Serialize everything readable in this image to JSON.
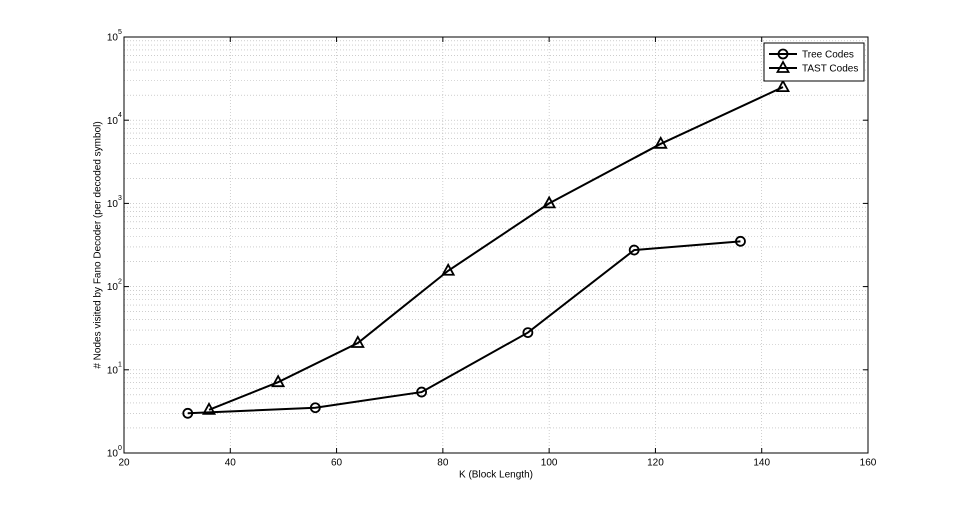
{
  "chart_data": {
    "type": "line",
    "xlabel": "K (Block Length)",
    "ylabel": "# Nodes visited by Fano Decoder (per decoded symbol)",
    "xlim": [
      20,
      160
    ],
    "xticks": [
      20,
      40,
      60,
      80,
      100,
      120,
      140,
      160
    ],
    "ylim": [
      1,
      100000
    ],
    "log_y": true,
    "yticks": [
      {
        "value": 1,
        "label": "10",
        "exponent": "0"
      },
      {
        "value": 10,
        "label": "10",
        "exponent": "1"
      },
      {
        "value": 100,
        "label": "10",
        "exponent": "2"
      },
      {
        "value": 1000,
        "label": "10",
        "exponent": "3"
      },
      {
        "value": 10000,
        "label": "10",
        "exponent": "4"
      },
      {
        "value": 100000,
        "label": "10",
        "exponent": "5"
      }
    ],
    "grid": true,
    "minor_grid": true,
    "legend": "northeast",
    "series": [
      {
        "name": "Tree Codes",
        "color": "#000000",
        "marker": "circle",
        "x": [
          32,
          56,
          76,
          96,
          116,
          136
        ],
        "values": [
          3,
          3.5,
          5.4,
          28,
          275,
          350
        ]
      },
      {
        "name": "TAST Codes",
        "color": "#000000",
        "marker": "triangle",
        "x": [
          36,
          49,
          64,
          81,
          100,
          121,
          144
        ],
        "values": [
          3.3,
          7.1,
          21,
          155,
          1000,
          5200,
          25000
        ]
      }
    ]
  }
}
